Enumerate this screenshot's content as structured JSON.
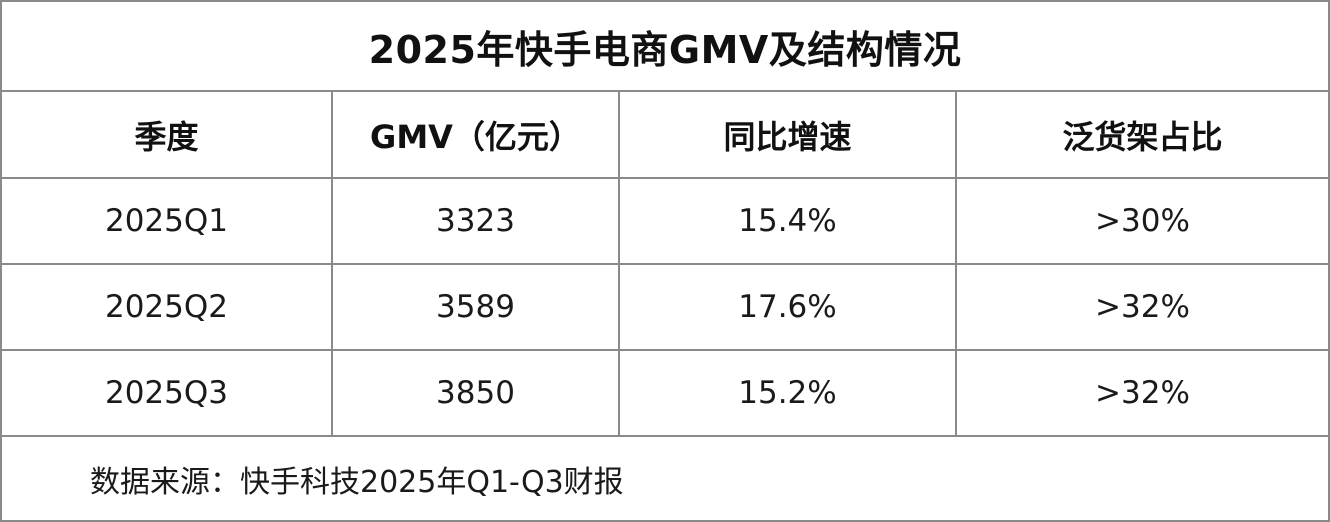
{
  "table": {
    "title": "2025年快手电商GMV及结构情况",
    "headers": [
      "季度",
      "GMV（亿元）",
      "同比增速",
      "泛货架占比"
    ],
    "rows": [
      [
        "2025Q1",
        "3323",
        "15.4%",
        ">30%"
      ],
      [
        "2025Q2",
        "3589",
        "17.6%",
        ">32%"
      ],
      [
        "2025Q3",
        "3850",
        "15.2%",
        ">32%"
      ]
    ],
    "source": "数据来源：快手科技2025年Q1-Q3财报"
  }
}
